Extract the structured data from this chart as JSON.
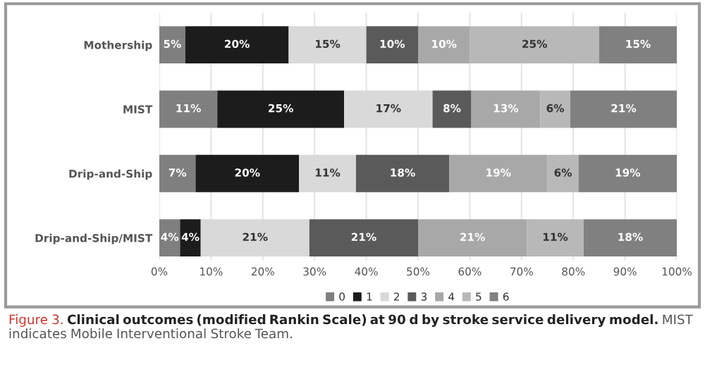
{
  "chart_data": {
    "type": "bar",
    "orientation": "horizontal",
    "stacked": true,
    "categories": [
      "Mothership",
      "MIST",
      "Drip-and-Ship",
      "Drip-and-Ship/MIST"
    ],
    "series": [
      {
        "name": "0",
        "color": "#7f7f7f",
        "values": [
          5,
          11.2,
          7,
          4
        ],
        "value_labels": [
          "5%",
          "11%",
          "7%",
          "4%"
        ]
      },
      {
        "name": "1",
        "color": "#1c1c1c",
        "values": [
          20,
          24.5,
          20,
          4
        ],
        "value_labels": [
          "20%",
          "25%",
          "20%",
          "4%"
        ]
      },
      {
        "name": "2",
        "color": "#d9d9d9",
        "values": [
          15,
          17.1,
          11,
          21
        ],
        "value_labels": [
          "15%",
          "17%",
          "11%",
          "21%"
        ]
      },
      {
        "name": "3",
        "color": "#5a5a5a",
        "values": [
          10,
          7.5,
          18,
          21
        ],
        "value_labels": [
          "10%",
          "8%",
          "18%",
          "21%"
        ]
      },
      {
        "name": "4",
        "color": "#a8a8a8",
        "values": [
          10,
          13.3,
          19,
          21
        ],
        "value_labels": [
          "10%",
          "13%",
          "19%",
          "21%"
        ]
      },
      {
        "name": "5",
        "color": "#b8b8b8",
        "values": [
          25,
          5.8,
          6,
          11
        ],
        "value_labels": [
          "25%",
          "6%",
          "6%",
          "11%"
        ]
      },
      {
        "name": "6",
        "color": "#808080",
        "values": [
          15,
          20.6,
          19,
          18
        ],
        "value_labels": [
          "15%",
          "21%",
          "19%",
          "18%"
        ]
      }
    ],
    "xlim": [
      0,
      100
    ],
    "xticks": [
      {
        "value": 0,
        "label": "0%"
      },
      {
        "value": 10,
        "label": "10%"
      },
      {
        "value": 20,
        "label": "20%"
      },
      {
        "value": 30,
        "label": "30%"
      },
      {
        "value": 40,
        "label": "40%"
      },
      {
        "value": 50,
        "label": "50%"
      },
      {
        "value": 60,
        "label": "60%"
      },
      {
        "value": 70,
        "label": "70%"
      },
      {
        "value": 80,
        "label": "80%"
      },
      {
        "value": 90,
        "label": "90%"
      },
      {
        "value": 100,
        "label": "100%"
      }
    ],
    "grid": "x",
    "legend": "bottom",
    "annotations": [
      "Figure 3.",
      "Clinical outcomes (modified Rankin Scale) at 90 d by stroke service delivery model.",
      "MIST indicates Mobile Interventional Stroke Team."
    ]
  }
}
